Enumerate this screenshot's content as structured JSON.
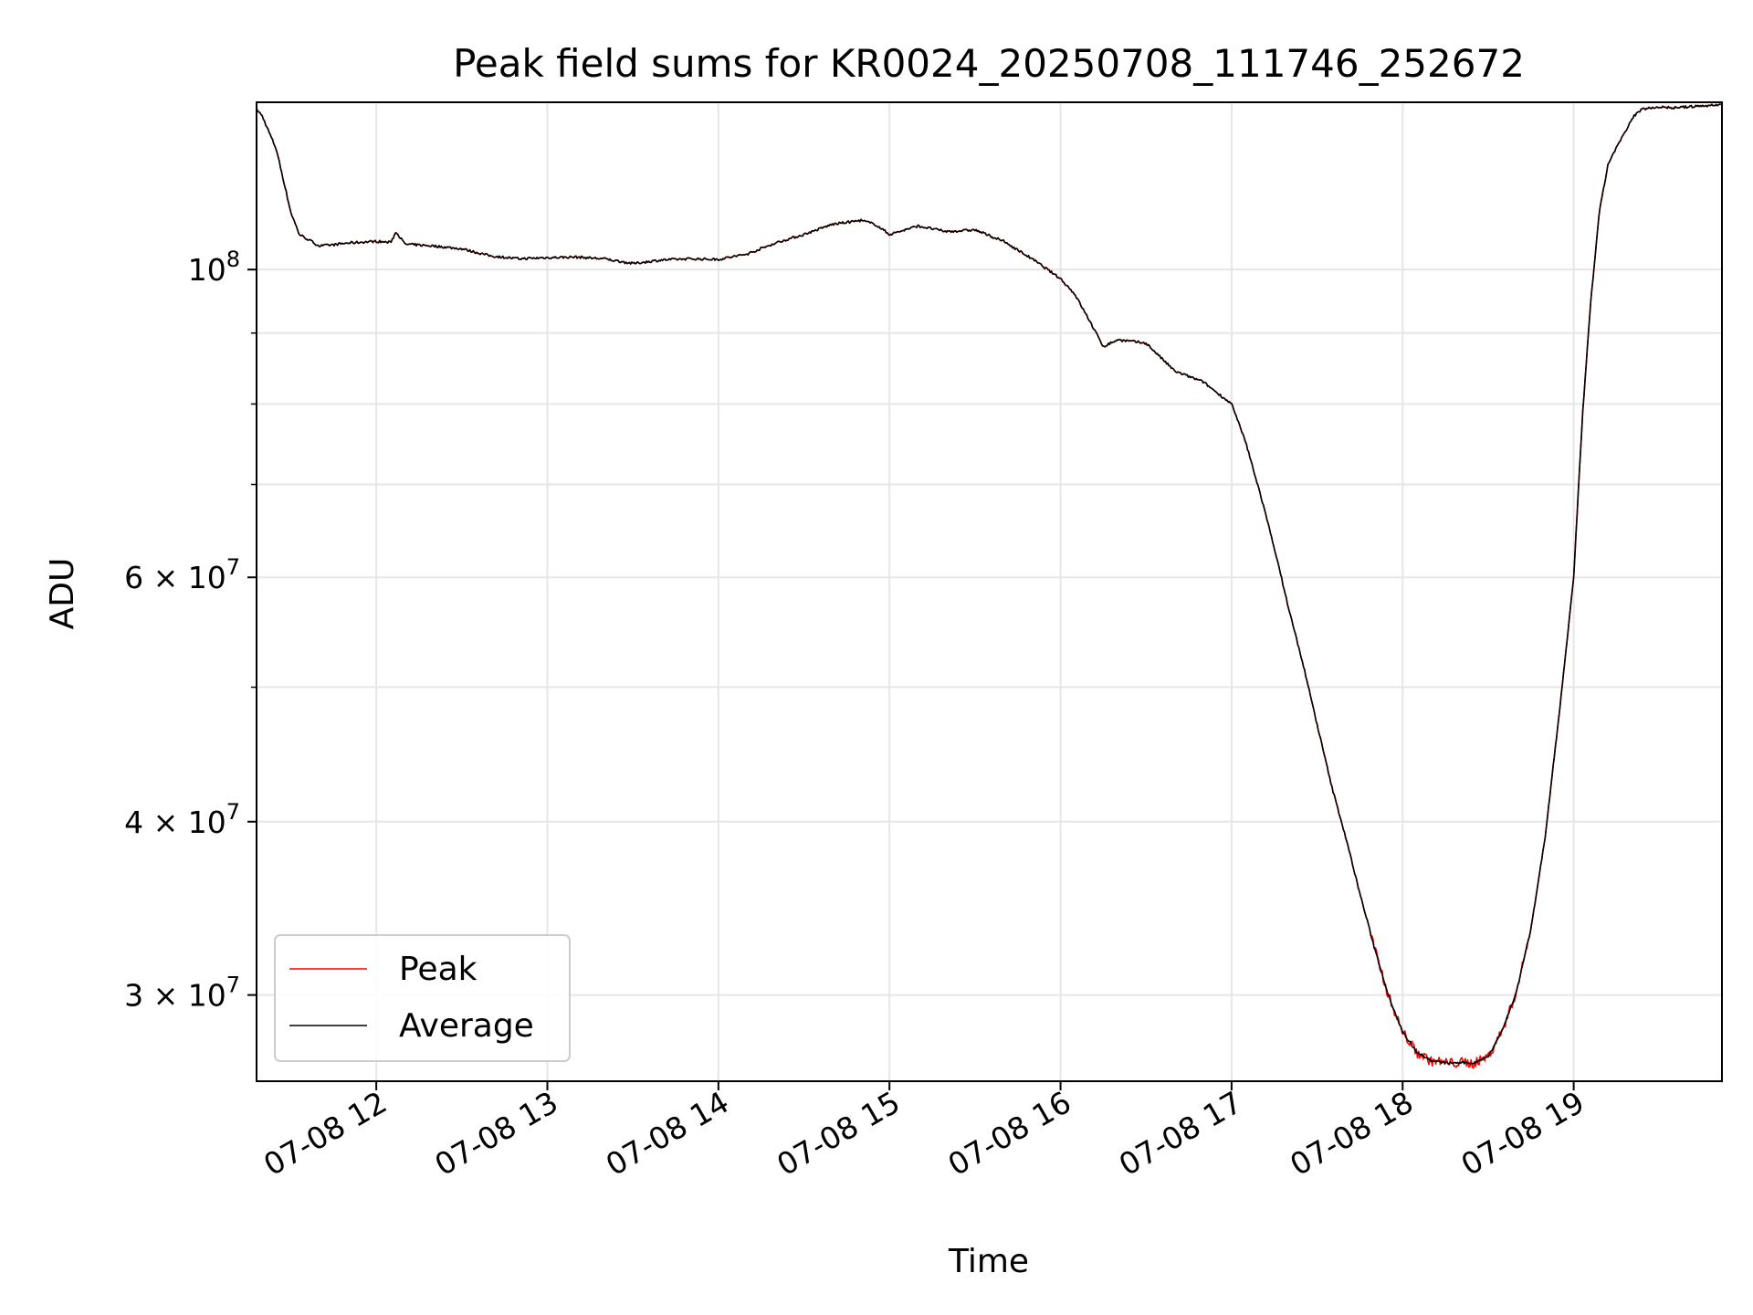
{
  "chart_data": {
    "type": "line",
    "title": "Peak field sums for KR0024_20250708_111746_252672",
    "xlabel": "Time",
    "ylabel": "ADU",
    "yscale": "log",
    "ylim": [
      26000000,
      132000000
    ],
    "xlim": [
      "2025-07-08 11:18",
      "2025-07-08 19:52"
    ],
    "grid": true,
    "legend_position": "lower left",
    "x_ticks": [
      {
        "value": "2025-07-08 12:00",
        "label": "07-08 12"
      },
      {
        "value": "2025-07-08 13:00",
        "label": "07-08 13"
      },
      {
        "value": "2025-07-08 14:00",
        "label": "07-08 14"
      },
      {
        "value": "2025-07-08 15:00",
        "label": "07-08 15"
      },
      {
        "value": "2025-07-08 16:00",
        "label": "07-08 16"
      },
      {
        "value": "2025-07-08 17:00",
        "label": "07-08 17"
      },
      {
        "value": "2025-07-08 18:00",
        "label": "07-08 18"
      },
      {
        "value": "2025-07-08 19:00",
        "label": "07-08 19"
      }
    ],
    "y_ticks": [
      {
        "value": 30000000,
        "mantissa": "3",
        "times": "×",
        "base": "10",
        "exp": "7"
      },
      {
        "value": 40000000,
        "mantissa": "4",
        "times": "×",
        "base": "10",
        "exp": "7"
      },
      {
        "value": 60000000,
        "mantissa": "6",
        "times": "×",
        "base": "10",
        "exp": "7"
      },
      {
        "value": 100000000,
        "mantissa": "",
        "times": "",
        "base": "10",
        "exp": "8"
      }
    ],
    "y_minor_ticks": [
      50000000,
      70000000,
      80000000,
      90000000
    ],
    "series": [
      {
        "name": "Peak",
        "color": "#ff0000",
        "jitter": 450000
      },
      {
        "name": "Average",
        "color": "#000000",
        "jitter": 0
      }
    ],
    "x": [
      "2025-07-08 11:18",
      "2025-07-08 11:20",
      "2025-07-08 11:25",
      "2025-07-08 11:30",
      "2025-07-08 11:33",
      "2025-07-08 11:40",
      "2025-07-08 11:45",
      "2025-07-08 11:50",
      "2025-07-08 12:00",
      "2025-07-08 12:05",
      "2025-07-08 12:07",
      "2025-07-08 12:10",
      "2025-07-08 12:20",
      "2025-07-08 12:30",
      "2025-07-08 12:40",
      "2025-07-08 12:50",
      "2025-07-08 13:00",
      "2025-07-08 13:10",
      "2025-07-08 13:20",
      "2025-07-08 13:30",
      "2025-07-08 13:40",
      "2025-07-08 13:50",
      "2025-07-08 14:00",
      "2025-07-08 14:10",
      "2025-07-08 14:20",
      "2025-07-08 14:30",
      "2025-07-08 14:40",
      "2025-07-08 14:50",
      "2025-07-08 14:55",
      "2025-07-08 15:00",
      "2025-07-08 15:10",
      "2025-07-08 15:20",
      "2025-07-08 15:30",
      "2025-07-08 15:40",
      "2025-07-08 15:50",
      "2025-07-08 16:00",
      "2025-07-08 16:05",
      "2025-07-08 16:10",
      "2025-07-08 16:15",
      "2025-07-08 16:20",
      "2025-07-08 16:30",
      "2025-07-08 16:40",
      "2025-07-08 16:50",
      "2025-07-08 17:00",
      "2025-07-08 17:05",
      "2025-07-08 17:10",
      "2025-07-08 17:15",
      "2025-07-08 17:20",
      "2025-07-08 17:25",
      "2025-07-08 17:30",
      "2025-07-08 17:35",
      "2025-07-08 17:40",
      "2025-07-08 17:45",
      "2025-07-08 17:50",
      "2025-07-08 17:55",
      "2025-07-08 18:00",
      "2025-07-08 18:05",
      "2025-07-08 18:10",
      "2025-07-08 18:15",
      "2025-07-08 18:20",
      "2025-07-08 18:25",
      "2025-07-08 18:30",
      "2025-07-08 18:35",
      "2025-07-08 18:40",
      "2025-07-08 18:45",
      "2025-07-08 18:50",
      "2025-07-08 18:55",
      "2025-07-08 19:00",
      "2025-07-08 19:03",
      "2025-07-08 19:06",
      "2025-07-08 19:09",
      "2025-07-08 19:12",
      "2025-07-08 19:15",
      "2025-07-08 19:18",
      "2025-07-08 19:21",
      "2025-07-08 19:24",
      "2025-07-08 19:27",
      "2025-07-08 19:30",
      "2025-07-08 19:35",
      "2025-07-08 19:40",
      "2025-07-08 19:45",
      "2025-07-08 19:50",
      "2025-07-08 19:52"
    ],
    "y": [
      130500000,
      129000000,
      122000000,
      110000000,
      106000000,
      104000000,
      104200000,
      104500000,
      104800000,
      104600000,
      106500000,
      104300000,
      104000000,
      103500000,
      102300000,
      101800000,
      102000000,
      102100000,
      101800000,
      101000000,
      101600000,
      101800000,
      101700000,
      102600000,
      104500000,
      106000000,
      107800000,
      108500000,
      107800000,
      106000000,
      107500000,
      106500000,
      106800000,
      104800000,
      101800000,
      98500000,
      96000000,
      92000000,
      88000000,
      89000000,
      88500000,
      84500000,
      83000000,
      80000000,
      75000000,
      69000000,
      63000000,
      57000000,
      52000000,
      47000000,
      42500000,
      39000000,
      35500000,
      32500000,
      30000000,
      28200000,
      27300000,
      26900000,
      26800000,
      26800000,
      26800000,
      27100000,
      28300000,
      30200000,
      33500000,
      39000000,
      48000000,
      60000000,
      78000000,
      95000000,
      110000000,
      119000000,
      122500000,
      125500000,
      129000000,
      130500000,
      130800000,
      131000000,
      130800000,
      131000000,
      131200000,
      131400000,
      131500000
    ]
  }
}
